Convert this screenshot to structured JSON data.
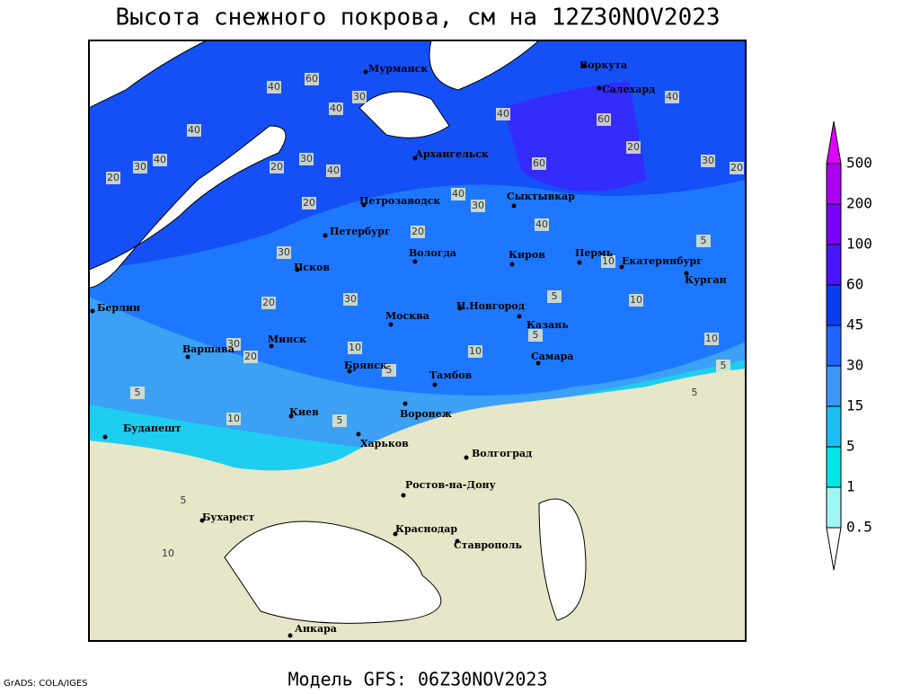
{
  "title": "Высота снежного покрова, см на 12Z30NOV2023",
  "footer_model": "Модель GFS: 06Z30NOV2023",
  "footer_credit": "GrADS: COLA/IGES",
  "legend": {
    "levels": [
      500,
      200,
      100,
      60,
      45,
      30,
      15,
      5,
      1,
      0.5
    ],
    "colors": [
      "#e100ff",
      "#aa00f0",
      "#7a00ff",
      "#4a14ff",
      "#0a3cf0",
      "#1e64ff",
      "#3c96f5",
      "#1ebef5",
      "#00e6e6",
      "#a0f5f5",
      "#ffffff"
    ]
  },
  "cities": [
    "Мурманск",
    "Воркута",
    "Салехард",
    "Архангельск",
    "Петрозаводск",
    "Сыктывкар",
    "Петербург",
    "Вологда",
    "Киров",
    "Пермь",
    "Екатеринбург",
    "Курган",
    "Псков",
    "Н.Новгород",
    "Москва",
    "Казань",
    "Берлин",
    "Варшава",
    "Минск",
    "Брянск",
    "Самара",
    "Тамбов",
    "Киев",
    "Воронеж",
    "Будапешт",
    "Харьков",
    "Волгоград",
    "Ростов-на-Дону",
    "Бухарест",
    "Краснодар",
    "Ставрополь",
    "Анкара"
  ],
  "contour_labels": [
    40,
    60,
    30,
    40,
    40,
    40,
    30,
    20,
    20,
    30,
    40,
    40,
    60,
    40,
    30,
    20,
    20,
    40,
    30,
    30,
    60,
    40,
    20,
    30,
    20,
    10,
    5,
    5,
    10,
    20,
    30,
    10,
    5,
    10,
    5,
    10,
    5,
    5,
    10,
    5,
    5,
    20,
    5,
    10
  ]
}
